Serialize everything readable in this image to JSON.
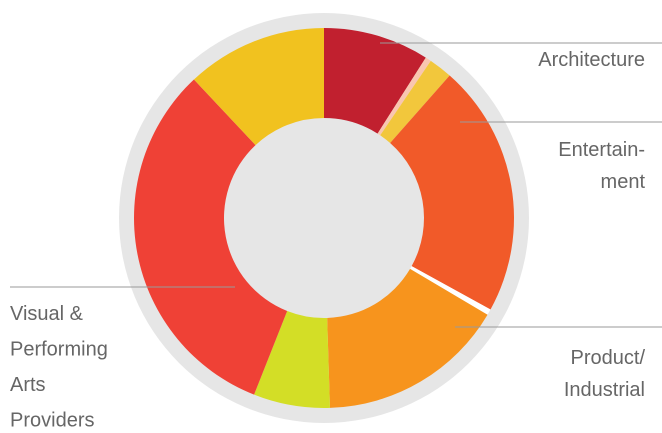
{
  "chart_data": {
    "type": "donut",
    "categories": [
      "Architecture",
      null,
      null,
      "Entertain-\nment",
      null,
      "Product/\nIndustrial",
      null,
      "Visual &\nPerforming\nArts\nProviders",
      null
    ],
    "values": [
      9,
      0.5,
      2,
      21.5,
      0.5,
      16,
      6.5,
      32,
      12
    ],
    "colors": [
      "#c1202f",
      "#f9c6b0",
      "#f2c73c",
      "#f15a29",
      "#ffffff",
      "#f7941d",
      "#d3de26",
      "#ef4136",
      "#f1c21f"
    ]
  }
}
